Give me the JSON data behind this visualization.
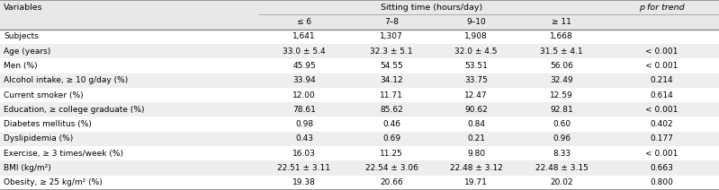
{
  "title": "Sitting time (hours/day)",
  "rows": [
    [
      "Subjects",
      "1,641",
      "1,307",
      "1,908",
      "1,668",
      ""
    ],
    [
      "Age (years)",
      "33.0 ± 5.4",
      "32.3 ± 5.1",
      "32.0 ± 4.5",
      "31.5 ± 4.1",
      "< 0.001"
    ],
    [
      "Men (%)",
      "45.95",
      "54.55",
      "53.51",
      "56.06",
      "< 0.001"
    ],
    [
      "Alcohol intake, ≥ 10 g/day (%)",
      "33.94",
      "34.12",
      "33.75",
      "32.49",
      "0.214"
    ],
    [
      "Current smoker (%)",
      "12.00",
      "11.71",
      "12.47",
      "12.59",
      "0.614"
    ],
    [
      "Education, ≥ college graduate (%)",
      "78.61",
      "85.62",
      "90.62",
      "92.81",
      "< 0.001"
    ],
    [
      "Diabetes mellitus (%)",
      "0.98",
      "0.46",
      "0.84",
      "0.60",
      "0.402"
    ],
    [
      "Dyslipidemia (%)",
      "0.43",
      "0.69",
      "0.21",
      "0.96",
      "0.177"
    ],
    [
      "Exercise, ≥ 3 times/week (%)",
      "16.03",
      "11.25",
      "9.80",
      "8.33",
      "< 0.001"
    ],
    [
      "BMI (kg/m²)",
      "22.51 ± 3.11",
      "22.54 ± 3.06",
      "22.48 ± 3.12",
      "22.48 ± 3.15",
      "0.663"
    ],
    [
      "Obesity, ≥ 25 kg/m² (%)",
      "19.38",
      "20.66",
      "19.71",
      "20.02",
      "0.800"
    ]
  ],
  "sub_headers": [
    "≤ 6",
    "7–8",
    "9–10",
    "≥ 11"
  ],
  "bg_color_even": "#eeeeee",
  "bg_color_odd": "#ffffff",
  "font_size": 6.5,
  "header_font_size": 6.8,
  "line_color": "#aaaaaa",
  "thick_line_color": "#888888"
}
